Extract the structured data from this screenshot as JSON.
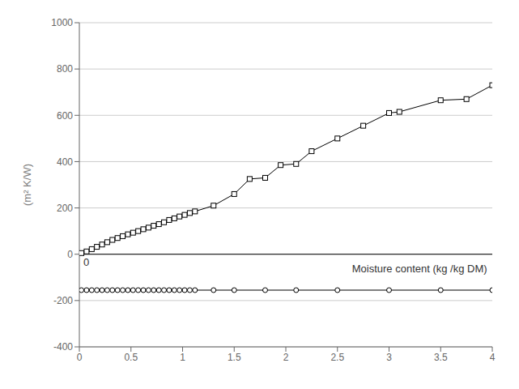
{
  "chart_data": {
    "type": "line",
    "ylabel": "(m² K/W)",
    "xlim": [
      0,
      4.0
    ],
    "ylim": [
      -400,
      1000
    ],
    "xticks": [
      0,
      0.5,
      1.0,
      1.5,
      2.0,
      2.5,
      3.0,
      3.5,
      4.0
    ],
    "yticks": [
      -400,
      -200,
      0,
      200,
      400,
      600,
      800,
      1000
    ],
    "grid": "y",
    "reference_lines": [
      {
        "y": 0
      }
    ],
    "annotations": [
      {
        "text": "Moisture content (kg /kg DM)",
        "x": 3.95,
        "y": -30
      },
      {
        "text": "0",
        "x": 0,
        "y": -1
      }
    ],
    "series": [
      {
        "color": "#000000",
        "marker": "square",
        "x": [
          0.02,
          0.07,
          0.12,
          0.17,
          0.22,
          0.27,
          0.32,
          0.37,
          0.42,
          0.47,
          0.52,
          0.57,
          0.62,
          0.67,
          0.72,
          0.77,
          0.82,
          0.87,
          0.92,
          0.97,
          1.02,
          1.07,
          1.12,
          1.3,
          1.5,
          1.65,
          1.8,
          1.95,
          2.1,
          2.25,
          2.5,
          2.75,
          3.0,
          3.1,
          3.5,
          3.75,
          4.0
        ],
        "values": [
          5,
          12,
          22,
          32,
          42,
          52,
          62,
          70,
          78,
          86,
          93,
          100,
          108,
          115,
          123,
          130,
          138,
          148,
          155,
          163,
          170,
          178,
          185,
          210,
          260,
          325,
          330,
          385,
          390,
          445,
          500,
          555,
          610,
          615,
          665,
          670,
          730
        ]
      },
      {
        "color": "#000000",
        "marker": "circle",
        "x": [
          0.02,
          0.07,
          0.12,
          0.17,
          0.22,
          0.27,
          0.32,
          0.37,
          0.42,
          0.47,
          0.52,
          0.57,
          0.62,
          0.67,
          0.72,
          0.77,
          0.82,
          0.87,
          0.92,
          0.97,
          1.02,
          1.07,
          1.12,
          1.3,
          1.5,
          1.8,
          2.1,
          2.5,
          3.0,
          3.5,
          4.0
        ],
        "values": [
          -155,
          -155,
          -155,
          -155,
          -155,
          -155,
          -155,
          -155,
          -155,
          -155,
          -155,
          -155,
          -155,
          -155,
          -155,
          -155,
          -155,
          -155,
          -155,
          -155,
          -155,
          -155,
          -155,
          -155,
          -155,
          -155,
          -155,
          -155,
          -155,
          -155,
          -155
        ]
      }
    ]
  }
}
